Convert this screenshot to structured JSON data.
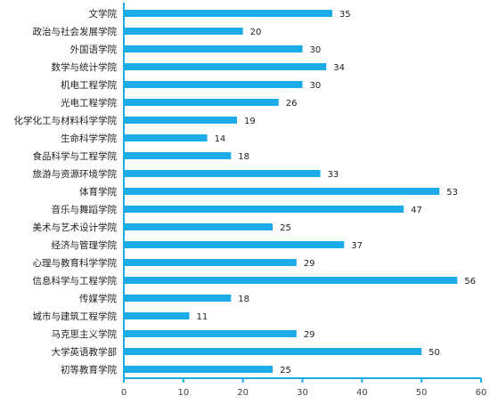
{
  "chart_data": {
    "type": "bar",
    "orientation": "horizontal",
    "categories": [
      "文学院",
      "政治与社会发展学院",
      "外国语学院",
      "数学与统计学院",
      "机电工程学院",
      "光电工程学院",
      "化学化工与材料科学学院",
      "生命科学学院",
      "食品科学与工程学院",
      "旅游与资源环境学院",
      "体育学院",
      "音乐与舞蹈学院",
      "美术与艺术设计学院",
      "经济与管理学院",
      "心理与教育科学学院",
      "信息科学与工程学院",
      "传媒学院",
      "城市与建筑工程学院",
      "马克思主义学院",
      "大学英语教学部",
      "初等教育学院"
    ],
    "values": [
      35,
      20,
      30,
      34,
      30,
      26,
      19,
      14,
      18,
      33,
      53,
      47,
      25,
      37,
      29,
      56,
      18,
      11,
      29,
      50,
      25
    ],
    "xlim": [
      0,
      60
    ],
    "xticks": [
      0,
      10,
      20,
      30,
      40,
      50,
      60
    ],
    "bar_color": "#1AABE8",
    "axis_color": "#1AABE8",
    "grid": false,
    "legend": "none",
    "data_labels": true
  }
}
